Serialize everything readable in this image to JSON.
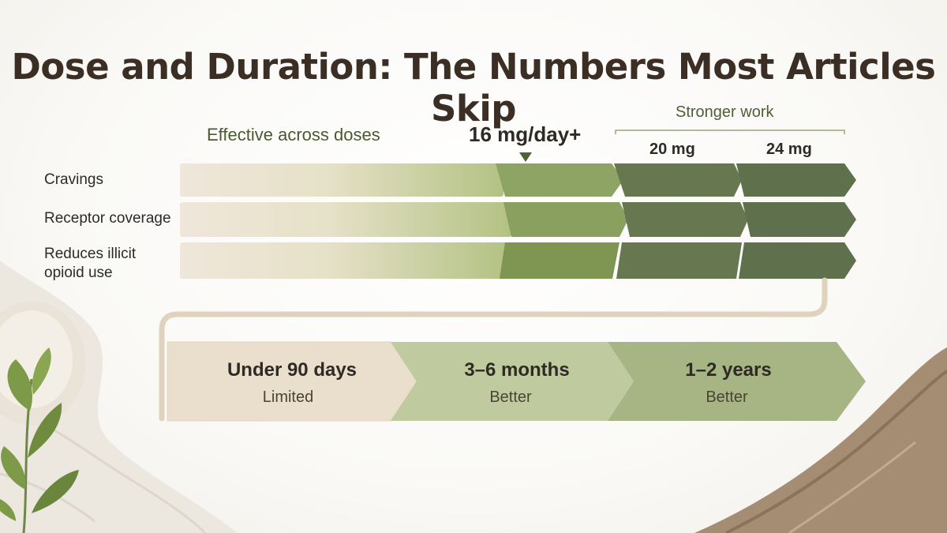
{
  "title": "Dose and Duration: The Numbers Most Articles Skip",
  "header": {
    "effective": "Effective across doses",
    "marker": "16 mg/day+",
    "stronger": "Stronger work",
    "dose_20": "20 mg",
    "dose_24": "24 mg"
  },
  "rows": [
    {
      "label": "Cravings"
    },
    {
      "label": "Receptor coverage"
    },
    {
      "label": "Reduces illicit opioid use"
    }
  ],
  "stages": [
    {
      "title": "Under 90 days",
      "sub": "Limited"
    },
    {
      "title": "3–6 months",
      "sub": "Better"
    },
    {
      "title": "1–2 years",
      "sub": "Better"
    }
  ],
  "colors": {
    "light": "#efe6d8",
    "mid": "#a8bb78",
    "dark": "#6e8350",
    "darkest": "#5b6b4b",
    "text": "#3b2f25"
  }
}
